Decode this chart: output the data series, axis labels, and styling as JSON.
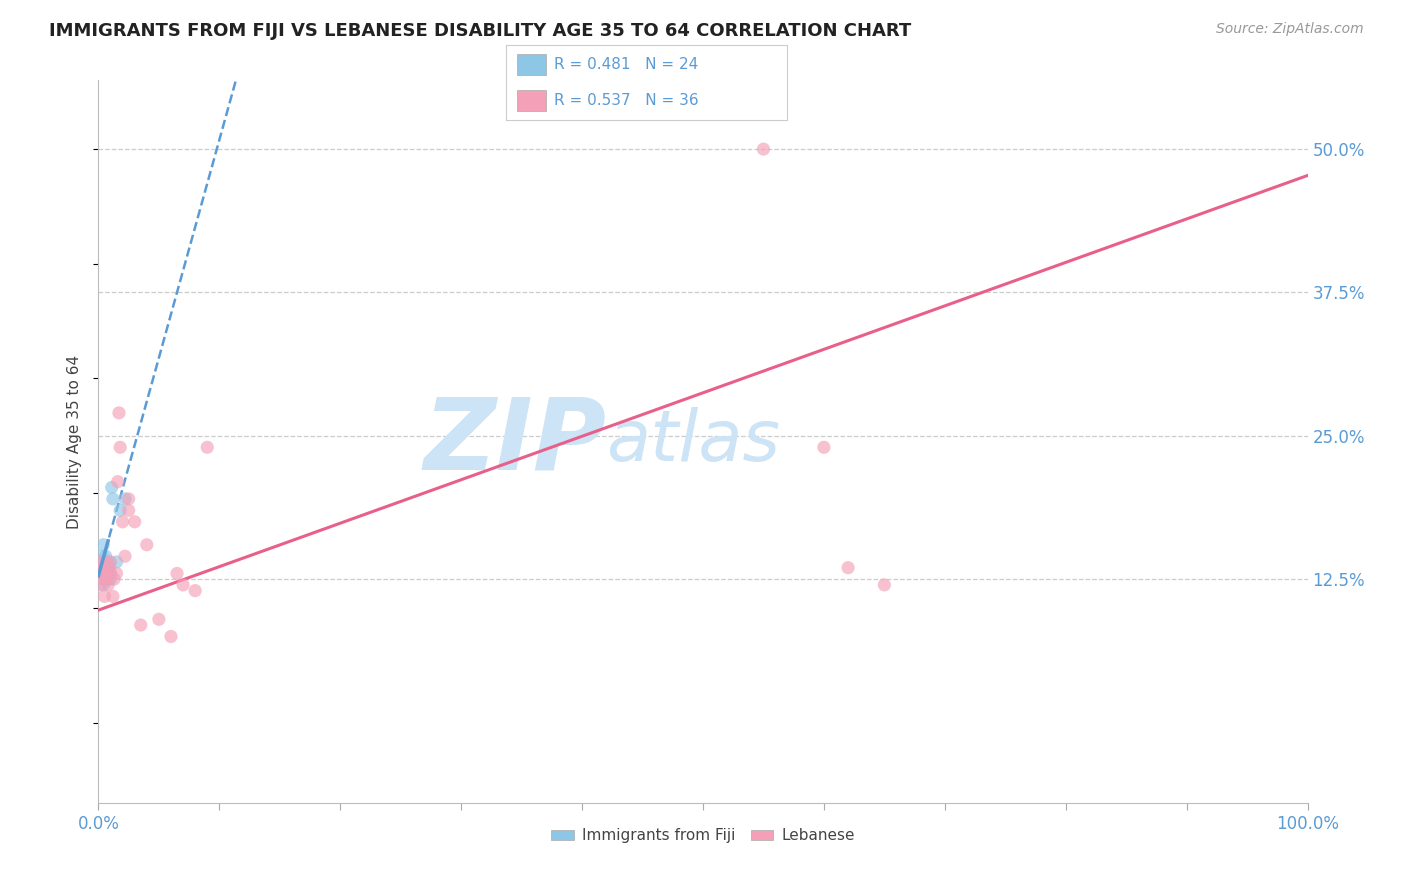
{
  "title": "IMMIGRANTS FROM FIJI VS LEBANESE DISABILITY AGE 35 TO 64 CORRELATION CHART",
  "source": "Source: ZipAtlas.com",
  "ylabel": "Disability Age 35 to 64",
  "legend_label1": "Immigrants from Fiji",
  "legend_label2": "Lebanese",
  "R1": 0.481,
  "N1": 24,
  "R2": 0.537,
  "N2": 36,
  "color1": "#8ec6e6",
  "color2": "#f4a0b8",
  "line_color1": "#5b9bd5",
  "line_color2": "#e8608a",
  "xlim": [
    0.0,
    1.0
  ],
  "ylim": [
    -0.07,
    0.56
  ],
  "yticks_right": [
    0.125,
    0.25,
    0.375,
    0.5
  ],
  "background_color": "#ffffff",
  "grid_color": "#cccccc",
  "title_fontsize": 13,
  "label_fontsize": 11,
  "tick_fontsize": 12,
  "legend_fontsize": 11,
  "source_fontsize": 10,
  "marker_size": 90,
  "marker_alpha": 0.65,
  "watermark_text1": "ZIP",
  "watermark_text2": "atlas",
  "watermark_color": "#cce4f5",
  "watermark_fontsize": 72,
  "scatter1_x": [
    0.001,
    0.002,
    0.003,
    0.003,
    0.004,
    0.004,
    0.005,
    0.005,
    0.006,
    0.006,
    0.007,
    0.007,
    0.007,
    0.008,
    0.008,
    0.009,
    0.009,
    0.01,
    0.01,
    0.011,
    0.012,
    0.015,
    0.018,
    0.022
  ],
  "scatter1_y": [
    0.135,
    0.14,
    0.13,
    0.145,
    0.12,
    0.155,
    0.13,
    0.135,
    0.125,
    0.145,
    0.13,
    0.135,
    0.14,
    0.125,
    0.13,
    0.135,
    0.14,
    0.125,
    0.13,
    0.205,
    0.195,
    0.14,
    0.185,
    0.195
  ],
  "scatter2_x": [
    0.001,
    0.001,
    0.002,
    0.003,
    0.004,
    0.005,
    0.006,
    0.006,
    0.007,
    0.008,
    0.009,
    0.01,
    0.01,
    0.012,
    0.013,
    0.015,
    0.016,
    0.017,
    0.018,
    0.02,
    0.022,
    0.025,
    0.025,
    0.03,
    0.035,
    0.04,
    0.05,
    0.06,
    0.065,
    0.07,
    0.08,
    0.09,
    0.55,
    0.6,
    0.62,
    0.65
  ],
  "scatter2_y": [
    0.135,
    0.14,
    0.12,
    0.13,
    0.125,
    0.11,
    0.13,
    0.14,
    0.125,
    0.12,
    0.135,
    0.13,
    0.14,
    0.11,
    0.125,
    0.13,
    0.21,
    0.27,
    0.24,
    0.175,
    0.145,
    0.185,
    0.195,
    0.175,
    0.085,
    0.155,
    0.09,
    0.075,
    0.13,
    0.12,
    0.115,
    0.24,
    0.5,
    0.24,
    0.135,
    0.12
  ],
  "regline1_start_x": 0.0,
  "regline1_start_y": 0.128,
  "regline1_slope": 3.8,
  "regline2_start_x": 0.0,
  "regline2_start_y": 0.098,
  "regline2_end_x": 1.0,
  "regline2_end_y": 0.477
}
